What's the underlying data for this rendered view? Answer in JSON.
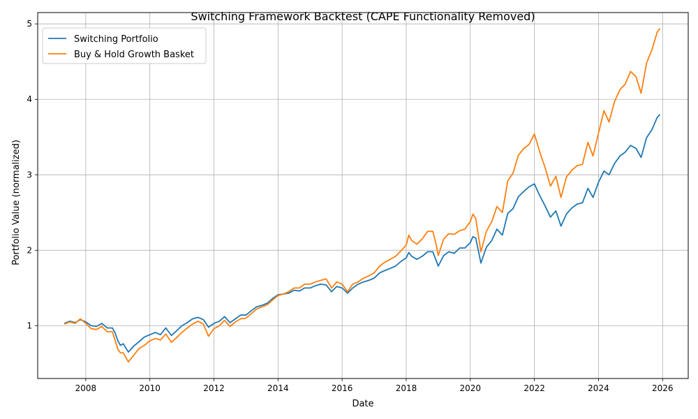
{
  "chart_data": {
    "type": "line",
    "title": "Switching Framework Backtest (CAPE Functionality Removed)",
    "xlabel": "Date",
    "ylabel": "Portfolio Value (normalized)",
    "xlim": [
      2006.5,
      2026.8
    ],
    "ylim": [
      0.3,
      5.15
    ],
    "x_ticks": [
      2008,
      2010,
      2012,
      2014,
      2016,
      2018,
      2020,
      2022,
      2024,
      2026
    ],
    "y_ticks": [
      1,
      2,
      3,
      4,
      5
    ],
    "grid": true,
    "legend_position": "top-left",
    "series": [
      {
        "name": "Switching Portfolio",
        "color": "#1f77b4",
        "points": [
          [
            2007.33,
            1.03
          ],
          [
            2007.5,
            1.06
          ],
          [
            2007.67,
            1.04
          ],
          [
            2007.83,
            1.08
          ],
          [
            2008.0,
            1.05
          ],
          [
            2008.17,
            1.0
          ],
          [
            2008.33,
            0.99
          ],
          [
            2008.5,
            1.03
          ],
          [
            2008.67,
            0.97
          ],
          [
            2008.83,
            0.97
          ],
          [
            2008.92,
            0.9
          ],
          [
            2009.0,
            0.8
          ],
          [
            2009.08,
            0.74
          ],
          [
            2009.17,
            0.76
          ],
          [
            2009.33,
            0.65
          ],
          [
            2009.5,
            0.73
          ],
          [
            2009.67,
            0.79
          ],
          [
            2009.83,
            0.85
          ],
          [
            2010.0,
            0.88
          ],
          [
            2010.17,
            0.91
          ],
          [
            2010.33,
            0.88
          ],
          [
            2010.5,
            0.97
          ],
          [
            2010.67,
            0.87
          ],
          [
            2010.83,
            0.93
          ],
          [
            2011.0,
            1.0
          ],
          [
            2011.17,
            1.04
          ],
          [
            2011.33,
            1.09
          ],
          [
            2011.5,
            1.11
          ],
          [
            2011.67,
            1.08
          ],
          [
            2011.83,
            0.98
          ],
          [
            2012.0,
            1.03
          ],
          [
            2012.17,
            1.06
          ],
          [
            2012.33,
            1.12
          ],
          [
            2012.5,
            1.04
          ],
          [
            2012.67,
            1.09
          ],
          [
            2012.83,
            1.14
          ],
          [
            2013.0,
            1.14
          ],
          [
            2013.17,
            1.2
          ],
          [
            2013.33,
            1.25
          ],
          [
            2013.5,
            1.27
          ],
          [
            2013.67,
            1.3
          ],
          [
            2013.83,
            1.36
          ],
          [
            2014.0,
            1.41
          ],
          [
            2014.17,
            1.42
          ],
          [
            2014.33,
            1.43
          ],
          [
            2014.5,
            1.47
          ],
          [
            2014.67,
            1.46
          ],
          [
            2014.83,
            1.5
          ],
          [
            2015.0,
            1.5
          ],
          [
            2015.17,
            1.53
          ],
          [
            2015.33,
            1.55
          ],
          [
            2015.5,
            1.54
          ],
          [
            2015.67,
            1.45
          ],
          [
            2015.83,
            1.52
          ],
          [
            2016.0,
            1.5
          ],
          [
            2016.17,
            1.43
          ],
          [
            2016.33,
            1.5
          ],
          [
            2016.5,
            1.55
          ],
          [
            2016.67,
            1.58
          ],
          [
            2016.83,
            1.6
          ],
          [
            2017.0,
            1.63
          ],
          [
            2017.17,
            1.7
          ],
          [
            2017.33,
            1.73
          ],
          [
            2017.5,
            1.76
          ],
          [
            2017.67,
            1.79
          ],
          [
            2017.83,
            1.85
          ],
          [
            2018.0,
            1.9
          ],
          [
            2018.08,
            1.97
          ],
          [
            2018.17,
            1.92
          ],
          [
            2018.33,
            1.88
          ],
          [
            2018.5,
            1.92
          ],
          [
            2018.67,
            1.98
          ],
          [
            2018.83,
            1.98
          ],
          [
            2018.92,
            1.88
          ],
          [
            2019.0,
            1.79
          ],
          [
            2019.17,
            1.93
          ],
          [
            2019.33,
            1.98
          ],
          [
            2019.5,
            1.96
          ],
          [
            2019.67,
            2.03
          ],
          [
            2019.83,
            2.03
          ],
          [
            2020.0,
            2.1
          ],
          [
            2020.08,
            2.18
          ],
          [
            2020.17,
            2.16
          ],
          [
            2020.33,
            1.83
          ],
          [
            2020.5,
            2.04
          ],
          [
            2020.67,
            2.13
          ],
          [
            2020.83,
            2.28
          ],
          [
            2021.0,
            2.2
          ],
          [
            2021.17,
            2.49
          ],
          [
            2021.33,
            2.55
          ],
          [
            2021.5,
            2.71
          ],
          [
            2021.67,
            2.78
          ],
          [
            2021.83,
            2.84
          ],
          [
            2022.0,
            2.88
          ],
          [
            2022.17,
            2.72
          ],
          [
            2022.33,
            2.59
          ],
          [
            2022.5,
            2.44
          ],
          [
            2022.67,
            2.52
          ],
          [
            2022.83,
            2.32
          ],
          [
            2023.0,
            2.48
          ],
          [
            2023.17,
            2.56
          ],
          [
            2023.33,
            2.61
          ],
          [
            2023.5,
            2.63
          ],
          [
            2023.67,
            2.82
          ],
          [
            2023.83,
            2.7
          ],
          [
            2024.0,
            2.9
          ],
          [
            2024.17,
            3.05
          ],
          [
            2024.33,
            3.0
          ],
          [
            2024.5,
            3.15
          ],
          [
            2024.67,
            3.25
          ],
          [
            2024.83,
            3.3
          ],
          [
            2025.0,
            3.39
          ],
          [
            2025.17,
            3.35
          ],
          [
            2025.33,
            3.23
          ],
          [
            2025.5,
            3.49
          ],
          [
            2025.67,
            3.6
          ],
          [
            2025.83,
            3.76
          ],
          [
            2025.92,
            3.8
          ]
        ]
      },
      {
        "name": "Buy & Hold Growth Basket",
        "color": "#ff7f0e",
        "points": [
          [
            2007.33,
            1.02
          ],
          [
            2007.5,
            1.05
          ],
          [
            2007.67,
            1.03
          ],
          [
            2007.83,
            1.09
          ],
          [
            2008.0,
            1.03
          ],
          [
            2008.17,
            0.96
          ],
          [
            2008.33,
            0.95
          ],
          [
            2008.5,
            0.99
          ],
          [
            2008.67,
            0.92
          ],
          [
            2008.83,
            0.92
          ],
          [
            2008.92,
            0.8
          ],
          [
            2009.0,
            0.69
          ],
          [
            2009.08,
            0.64
          ],
          [
            2009.17,
            0.64
          ],
          [
            2009.33,
            0.52
          ],
          [
            2009.5,
            0.61
          ],
          [
            2009.67,
            0.7
          ],
          [
            2009.83,
            0.74
          ],
          [
            2010.0,
            0.8
          ],
          [
            2010.17,
            0.83
          ],
          [
            2010.33,
            0.81
          ],
          [
            2010.5,
            0.89
          ],
          [
            2010.67,
            0.78
          ],
          [
            2010.83,
            0.84
          ],
          [
            2011.0,
            0.91
          ],
          [
            2011.17,
            0.97
          ],
          [
            2011.33,
            1.02
          ],
          [
            2011.5,
            1.06
          ],
          [
            2011.67,
            1.02
          ],
          [
            2011.83,
            0.86
          ],
          [
            2012.0,
            0.96
          ],
          [
            2012.17,
            1.0
          ],
          [
            2012.33,
            1.07
          ],
          [
            2012.5,
            0.99
          ],
          [
            2012.67,
            1.05
          ],
          [
            2012.83,
            1.09
          ],
          [
            2013.0,
            1.1
          ],
          [
            2013.17,
            1.16
          ],
          [
            2013.33,
            1.22
          ],
          [
            2013.5,
            1.25
          ],
          [
            2013.67,
            1.28
          ],
          [
            2013.83,
            1.34
          ],
          [
            2014.0,
            1.4
          ],
          [
            2014.17,
            1.42
          ],
          [
            2014.33,
            1.45
          ],
          [
            2014.5,
            1.5
          ],
          [
            2014.67,
            1.5
          ],
          [
            2014.83,
            1.55
          ],
          [
            2015.0,
            1.55
          ],
          [
            2015.17,
            1.58
          ],
          [
            2015.33,
            1.6
          ],
          [
            2015.5,
            1.62
          ],
          [
            2015.67,
            1.5
          ],
          [
            2015.83,
            1.58
          ],
          [
            2016.0,
            1.55
          ],
          [
            2016.17,
            1.45
          ],
          [
            2016.33,
            1.55
          ],
          [
            2016.5,
            1.58
          ],
          [
            2016.67,
            1.63
          ],
          [
            2016.83,
            1.66
          ],
          [
            2017.0,
            1.7
          ],
          [
            2017.17,
            1.79
          ],
          [
            2017.33,
            1.84
          ],
          [
            2017.5,
            1.88
          ],
          [
            2017.67,
            1.92
          ],
          [
            2017.83,
            1.99
          ],
          [
            2018.0,
            2.07
          ],
          [
            2018.08,
            2.2
          ],
          [
            2018.17,
            2.13
          ],
          [
            2018.33,
            2.08
          ],
          [
            2018.5,
            2.15
          ],
          [
            2018.67,
            2.25
          ],
          [
            2018.83,
            2.25
          ],
          [
            2018.92,
            2.1
          ],
          [
            2019.0,
            1.93
          ],
          [
            2019.17,
            2.15
          ],
          [
            2019.33,
            2.22
          ],
          [
            2019.5,
            2.21
          ],
          [
            2019.67,
            2.26
          ],
          [
            2019.83,
            2.28
          ],
          [
            2020.0,
            2.38
          ],
          [
            2020.08,
            2.48
          ],
          [
            2020.17,
            2.42
          ],
          [
            2020.33,
            1.98
          ],
          [
            2020.5,
            2.25
          ],
          [
            2020.67,
            2.38
          ],
          [
            2020.83,
            2.58
          ],
          [
            2021.0,
            2.5
          ],
          [
            2021.17,
            2.92
          ],
          [
            2021.33,
            3.02
          ],
          [
            2021.5,
            3.26
          ],
          [
            2021.67,
            3.35
          ],
          [
            2021.83,
            3.4
          ],
          [
            2022.0,
            3.54
          ],
          [
            2022.17,
            3.3
          ],
          [
            2022.33,
            3.1
          ],
          [
            2022.5,
            2.85
          ],
          [
            2022.67,
            2.98
          ],
          [
            2022.83,
            2.7
          ],
          [
            2023.0,
            2.97
          ],
          [
            2023.17,
            3.06
          ],
          [
            2023.33,
            3.12
          ],
          [
            2023.5,
            3.14
          ],
          [
            2023.67,
            3.43
          ],
          [
            2023.83,
            3.25
          ],
          [
            2024.0,
            3.55
          ],
          [
            2024.17,
            3.85
          ],
          [
            2024.33,
            3.7
          ],
          [
            2024.5,
            3.97
          ],
          [
            2024.67,
            4.13
          ],
          [
            2024.83,
            4.2
          ],
          [
            2025.0,
            4.37
          ],
          [
            2025.17,
            4.3
          ],
          [
            2025.33,
            4.08
          ],
          [
            2025.5,
            4.48
          ],
          [
            2025.67,
            4.66
          ],
          [
            2025.83,
            4.89
          ],
          [
            2025.92,
            4.94
          ]
        ]
      }
    ]
  }
}
